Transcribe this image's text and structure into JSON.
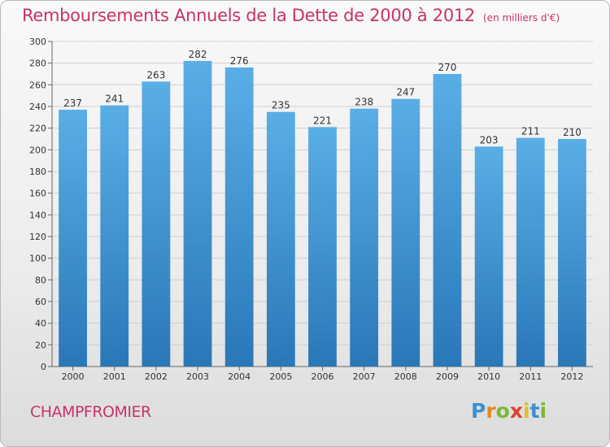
{
  "chart_data": {
    "type": "bar",
    "title": "Remboursements Annuels de la Dette de 2000 à 2012",
    "subtitle": "(en milliers d'€)",
    "categories": [
      "2000",
      "2001",
      "2002",
      "2003",
      "2004",
      "2005",
      "2006",
      "2007",
      "2008",
      "2009",
      "2010",
      "2011",
      "2012"
    ],
    "values": [
      237,
      241,
      263,
      282,
      276,
      235,
      221,
      238,
      247,
      270,
      203,
      211,
      210
    ],
    "ylim": [
      0,
      300
    ],
    "yticks": [
      0,
      20,
      40,
      60,
      80,
      100,
      120,
      140,
      160,
      180,
      200,
      220,
      240,
      260,
      280,
      300
    ],
    "grid": true,
    "legend": "none",
    "bar_color_top": "#5aaee6",
    "bar_color_bottom": "#2a77b8"
  },
  "footer": {
    "commune": "CHAMPFROMIER",
    "logo_letters": [
      "P",
      "r",
      "o",
      "x",
      "i",
      "t",
      "i"
    ],
    "logo_colors": [
      "#3d8fd0",
      "#e38a1e",
      "#7cb832",
      "#e0402f",
      "#e0c028",
      "#3d8fd0",
      "#7cb832"
    ]
  }
}
